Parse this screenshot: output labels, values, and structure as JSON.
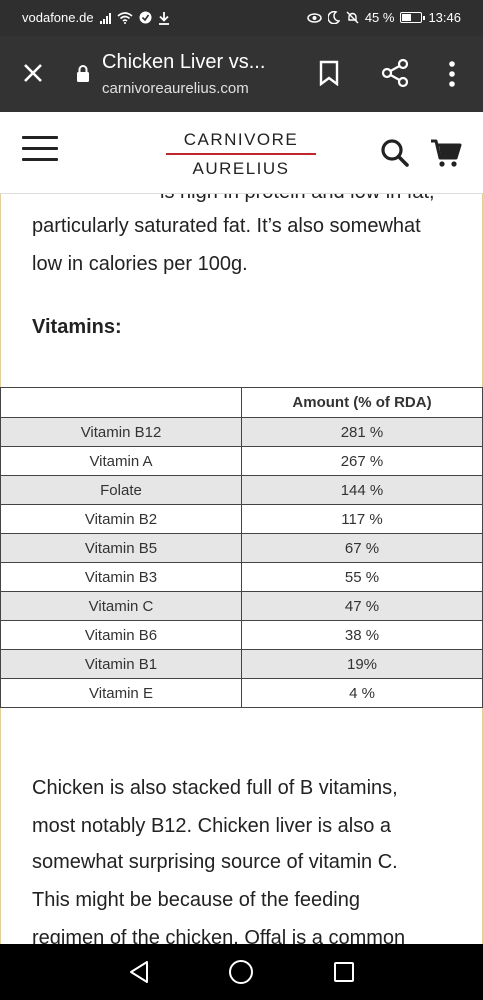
{
  "status_bar": {
    "carrier": "vodafone.de",
    "battery": "45 %",
    "time": "13:46"
  },
  "toolbar": {
    "title": "Chicken Liver vs...",
    "url": "carnivoreaurelius.com"
  },
  "site": {
    "logo_line1": "CARNIVORE",
    "logo_line2": "AURELIUS"
  },
  "article": {
    "cut_text": "is high in protein and low in fat,",
    "para1_line1": "particularly saturated fat. It’s also somewhat",
    "para1_line2": "low in calories per 100g.",
    "vitamins_heading": "Vitamins:",
    "table": {
      "col1_header": "",
      "col2_header": "Amount (% of RDA)",
      "rows": [
        {
          "name": "Vitamin B12",
          "amount": "281 %"
        },
        {
          "name": "Vitamin A",
          "amount": "267 %"
        },
        {
          "name": "Folate",
          "amount": "144 %"
        },
        {
          "name": "Vitamin B2",
          "amount": "117 %"
        },
        {
          "name": "Vitamin B5",
          "amount": "67 %"
        },
        {
          "name": "Vitamin B3",
          "amount": "55 %"
        },
        {
          "name": "Vitamin C",
          "amount": "47 %"
        },
        {
          "name": "Vitamin B6",
          "amount": "38 %"
        },
        {
          "name": "Vitamin B1",
          "amount": "19%"
        },
        {
          "name": "Vitamin E",
          "amount": "4 %"
        }
      ]
    },
    "para2_lines": [
      "Chicken is also stacked full of B vitamins,",
      "most notably B12. Chicken liver is also a",
      "somewhat surprising source of vitamin C.",
      "This might be because of the feeding",
      "regimen of the chicken. Offal is a common"
    ]
  },
  "icons": {
    "close": "close-icon",
    "lock": "lock-icon",
    "bookmark": "bookmark-icon",
    "share": "share-icon",
    "more": "more-vert-icon",
    "menu": "hamburger-icon",
    "search": "search-icon",
    "cart": "cart-icon"
  },
  "colors": {
    "toolbar_bg": "#333333",
    "accent": "#c0272d"
  }
}
